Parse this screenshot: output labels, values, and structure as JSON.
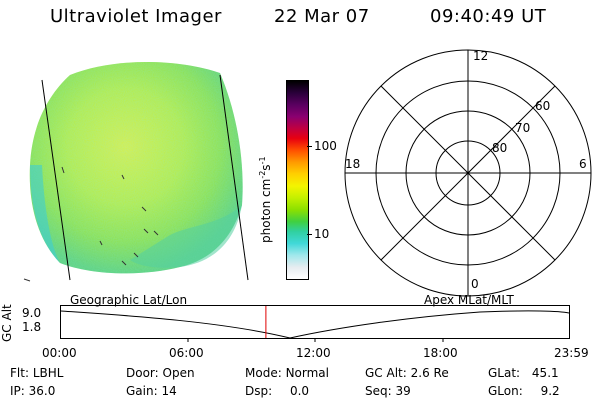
{
  "header": {
    "title": "Ultraviolet Imager",
    "date": "22 Mar 07",
    "time": "09:40:49 UT"
  },
  "colorbar": {
    "unit": "photon cm",
    "unit_exp1": "-2",
    "unit_mid": "s",
    "unit_exp2": "-1",
    "tick_100": "100",
    "tick_10": "10",
    "colors": [
      "#000000",
      "#2a003a",
      "#5a0060",
      "#8a0070",
      "#c00040",
      "#e80010",
      "#ff5000",
      "#ff9a00",
      "#ffd000",
      "#f4f400",
      "#c4f000",
      "#8ce000",
      "#40d040",
      "#30d0a0",
      "#40d8d8",
      "#a0e8ec",
      "#e6ecf0",
      "#ffffff"
    ]
  },
  "polar": {
    "labels": {
      "top": "12",
      "left": "18",
      "right": "6",
      "bottom": "0",
      "ring_60": "60",
      "ring_70": "70",
      "ring_80": "80"
    }
  },
  "track": {
    "left_label": "Geographic Lat/Lon",
    "right_label": "Apex  MLat/MLT",
    "axis_label": "GC Alt",
    "y_top": "9.0",
    "y_bottom": "1.8",
    "x_ticks": [
      "00:00",
      "06:00",
      "12:00",
      "18:00",
      "23:59"
    ],
    "current_time_hours": 9.68,
    "marker_color": "#e00000"
  },
  "info": {
    "flt_label": "Flt:",
    "flt_value": "LBHL",
    "ip_label": "IP:",
    "ip_value": "36.0",
    "door_label": "Door:",
    "door_value": "Open",
    "gain_label": "Gain:",
    "gain_value": "14",
    "mode_label": "Mode:",
    "mode_value": "Normal",
    "dsp_label": "Dsp:",
    "dsp_value": "0.0",
    "gcalt_label": "GC Alt:",
    "gcalt_value": "2.6 Re",
    "seq_label": "Seq:",
    "seq_value": "39",
    "glat_label": "GLat:",
    "glat_value": "45.1",
    "glon_label": "GLon:",
    "glon_value": "9.2"
  }
}
